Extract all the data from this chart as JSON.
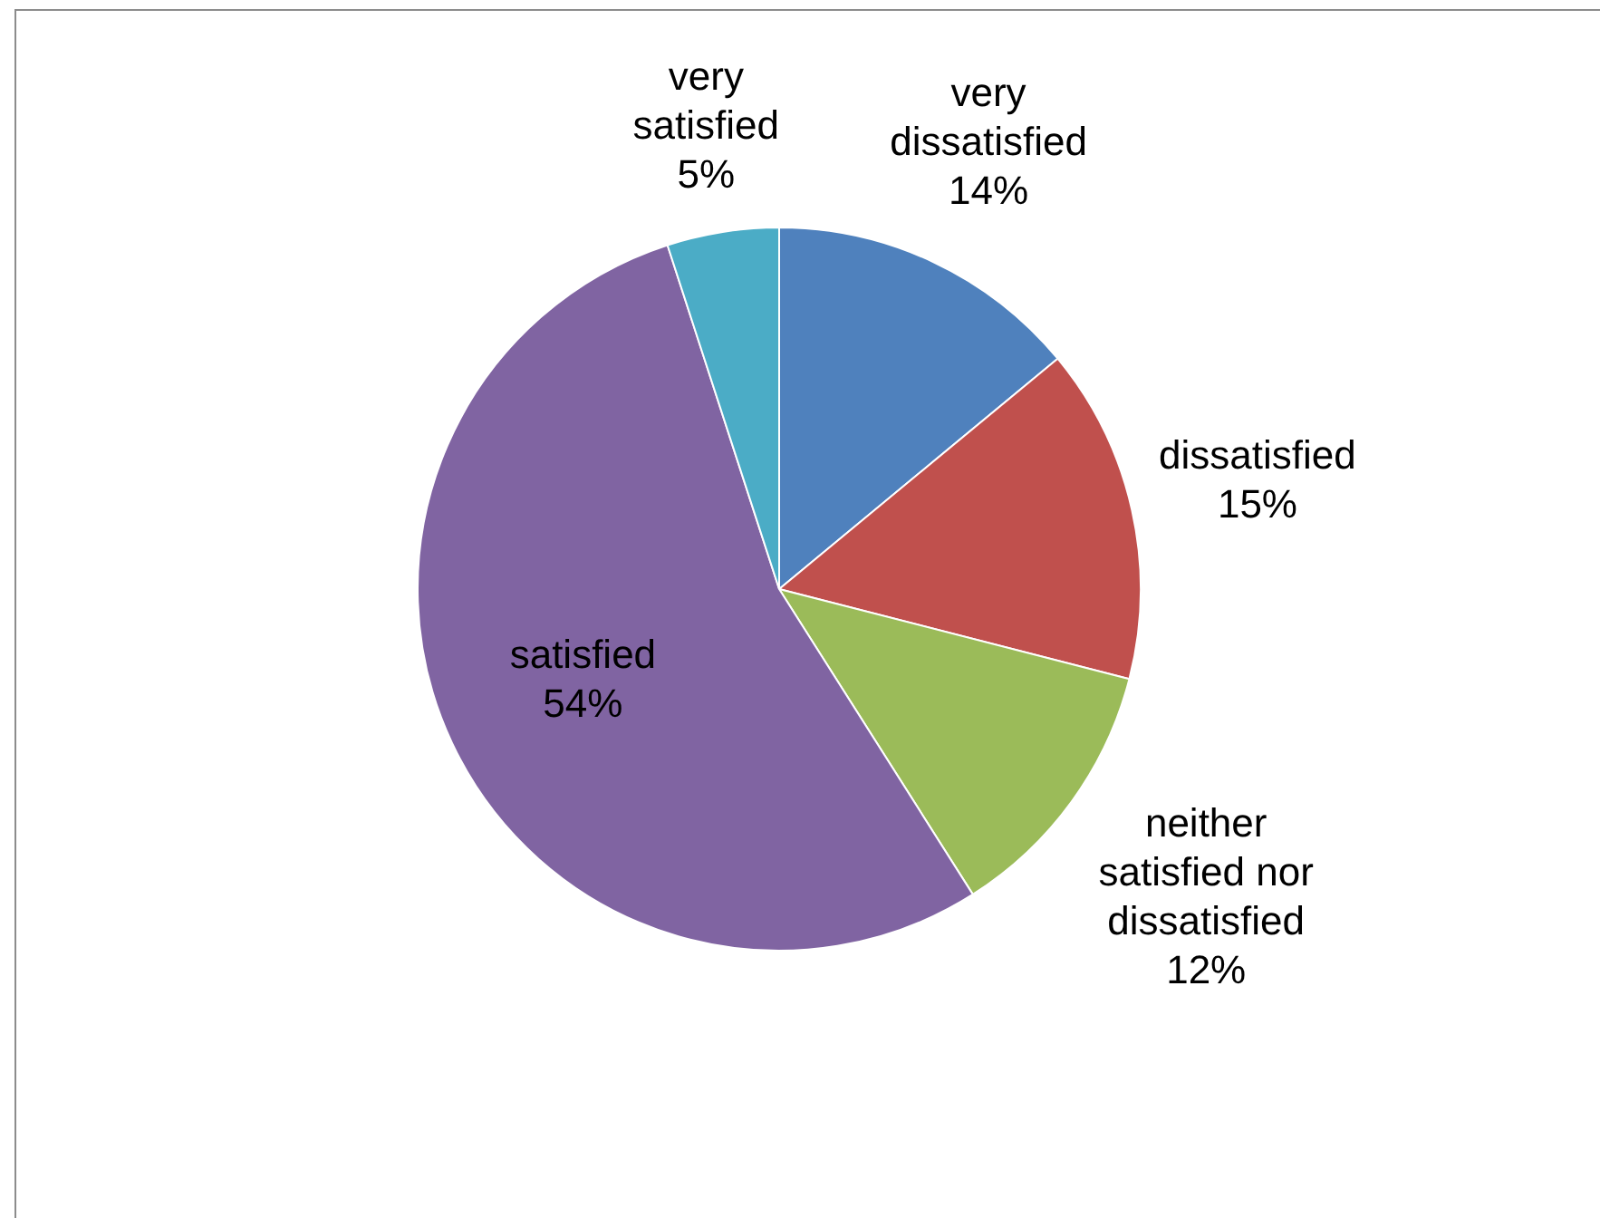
{
  "chart_data": {
    "type": "pie",
    "categories": [
      "very dissatisfied",
      "dissatisfied",
      "neither satisfied nor dissatisfied",
      "satisfied",
      "very satisfied"
    ],
    "values": [
      14,
      15,
      12,
      54,
      5
    ],
    "colors": [
      "#4f81bd",
      "#c0504d",
      "#9bbb59",
      "#8064a2",
      "#4bacc6"
    ],
    "value_labels": [
      "14%",
      "15%",
      "12%",
      "54%",
      "5%"
    ],
    "legend": false
  }
}
